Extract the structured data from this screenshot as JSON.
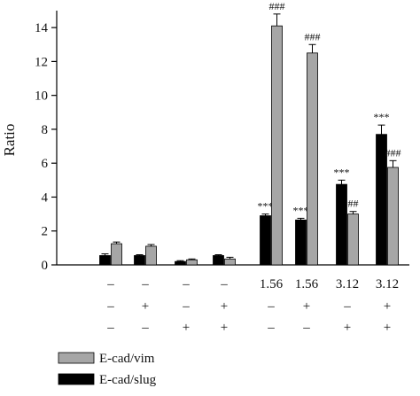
{
  "chart_data": {
    "type": "bar",
    "title": "",
    "xlabel": "",
    "ylabel": "Ratio",
    "ylim": [
      0,
      15
    ],
    "yticks": [
      "0",
      "2",
      "4",
      "6",
      "8",
      "10",
      "12",
      "14"
    ],
    "grid": false,
    "legend_position": "bottom-left",
    "series": [
      {
        "name": "E-cad/slug",
        "color": "#000000",
        "values": [
          0.55,
          0.55,
          0.2,
          0.55,
          2.9,
          2.65,
          4.75,
          7.7
        ],
        "errors": [
          0.1,
          0.05,
          0.05,
          0.05,
          0.1,
          0.1,
          0.25,
          0.55
        ],
        "annotations": [
          "",
          "",
          "",
          "",
          "***",
          "***",
          "***",
          "***"
        ]
      },
      {
        "name": "E-cad/vim",
        "color": "#a6a6a6",
        "values": [
          1.25,
          1.1,
          0.3,
          0.35,
          14.1,
          12.5,
          3.0,
          5.75
        ],
        "errors": [
          0.1,
          0.1,
          0.05,
          0.1,
          0.7,
          0.5,
          0.15,
          0.4
        ],
        "annotations": [
          "",
          "",
          "",
          "",
          "###",
          "###",
          "##",
          "###"
        ]
      }
    ],
    "treatment_rows": [
      [
        "–",
        "–",
        "–",
        "–",
        "1.56",
        "1.56",
        "3.12",
        "3.12"
      ],
      [
        "–",
        "+",
        "–",
        "+",
        "–",
        "+",
        "–",
        "+"
      ],
      [
        "–",
        "–",
        "+",
        "+",
        "–",
        "–",
        "+",
        "+"
      ]
    ],
    "legend": [
      {
        "label": "E-cad/vim",
        "color": "#a6a6a6"
      },
      {
        "label": "E-cad/slug",
        "color": "#000000"
      }
    ]
  }
}
